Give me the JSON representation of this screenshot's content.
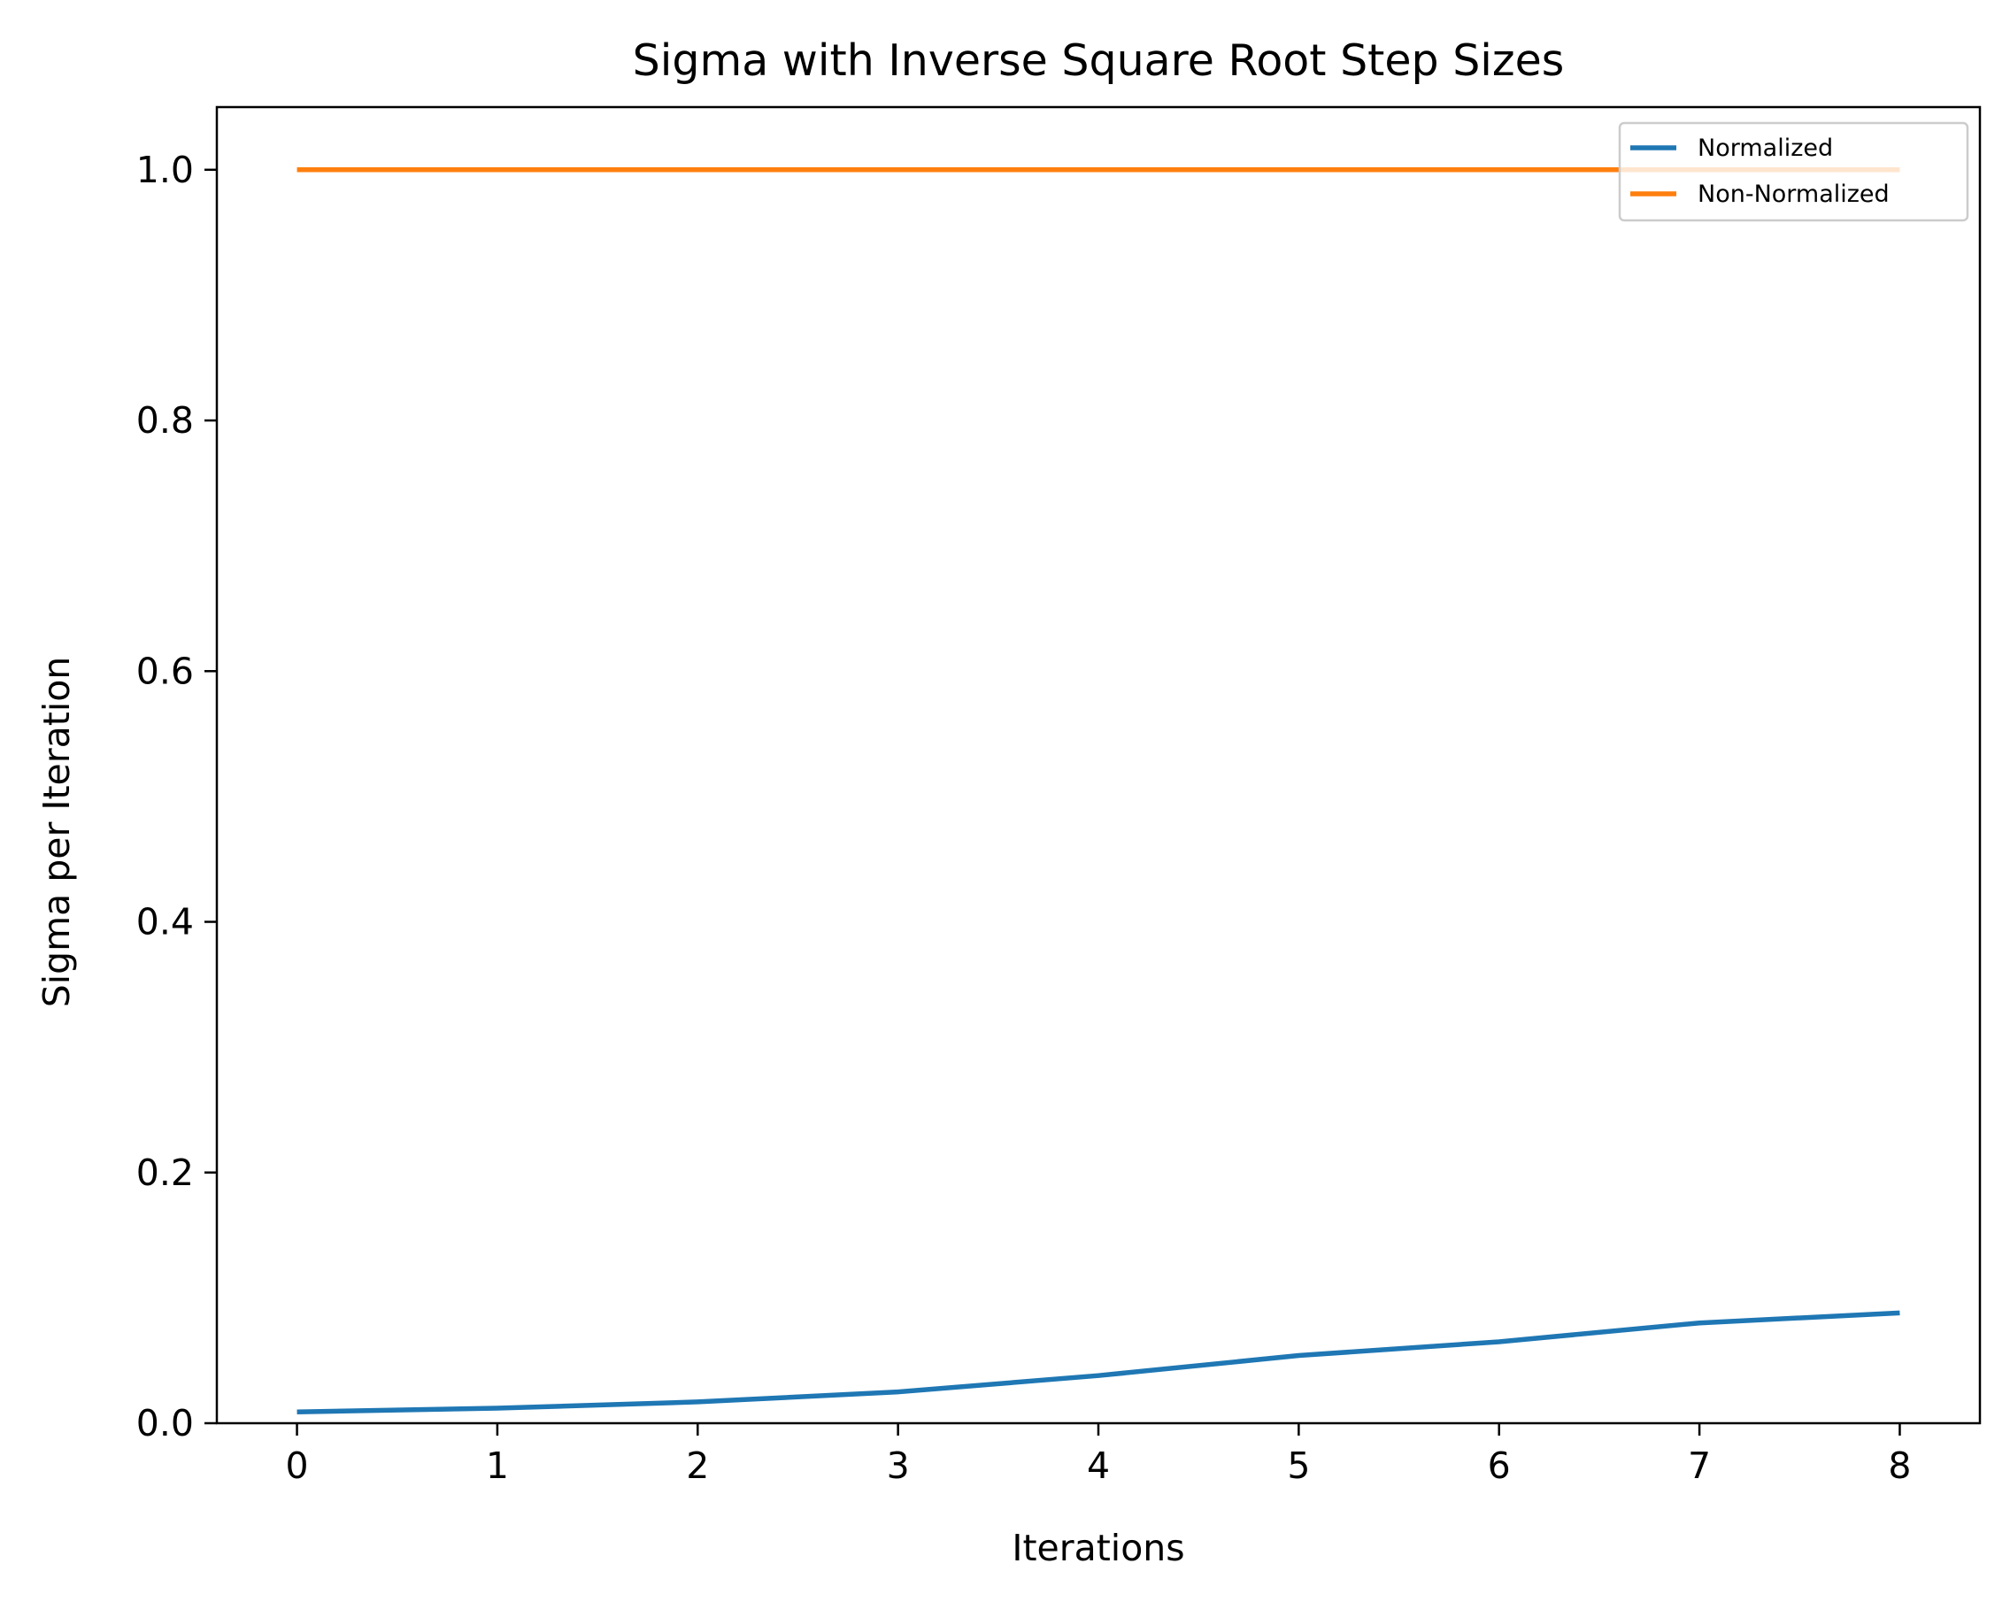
{
  "chart_data": {
    "type": "line",
    "title": "Sigma with Inverse Square Root Step Sizes",
    "xlabel": "Iterations",
    "ylabel": "Sigma per Iteration",
    "xlim": [
      -0.4,
      8.4
    ],
    "ylim": [
      0.0,
      1.05
    ],
    "grid": false,
    "legend_position": "top-right",
    "x_ticks": [
      0,
      1,
      2,
      3,
      4,
      5,
      6,
      7,
      8
    ],
    "x_tick_labels": [
      "0",
      "1",
      "2",
      "3",
      "4",
      "5",
      "6",
      "7",
      "8"
    ],
    "y_ticks": [
      0.0,
      0.2,
      0.4,
      0.6,
      0.8,
      1.0
    ],
    "y_tick_labels": [
      "0.0",
      "0.2",
      "0.4",
      "0.6",
      "0.8",
      "1.0"
    ],
    "x": [
      0,
      1,
      2,
      3,
      4,
      5,
      6,
      7,
      8
    ],
    "series": [
      {
        "name": "Normalized",
        "color": "#1f77b4",
        "values": [
          0.009,
          0.012,
          0.017,
          0.025,
          0.038,
          0.054,
          0.065,
          0.08,
          0.088
        ]
      },
      {
        "name": "Non-Normalized",
        "color": "#ff7f0e",
        "values": [
          1.0,
          1.0,
          1.0,
          1.0,
          1.0,
          1.0,
          1.0,
          1.0,
          1.0
        ]
      }
    ]
  }
}
